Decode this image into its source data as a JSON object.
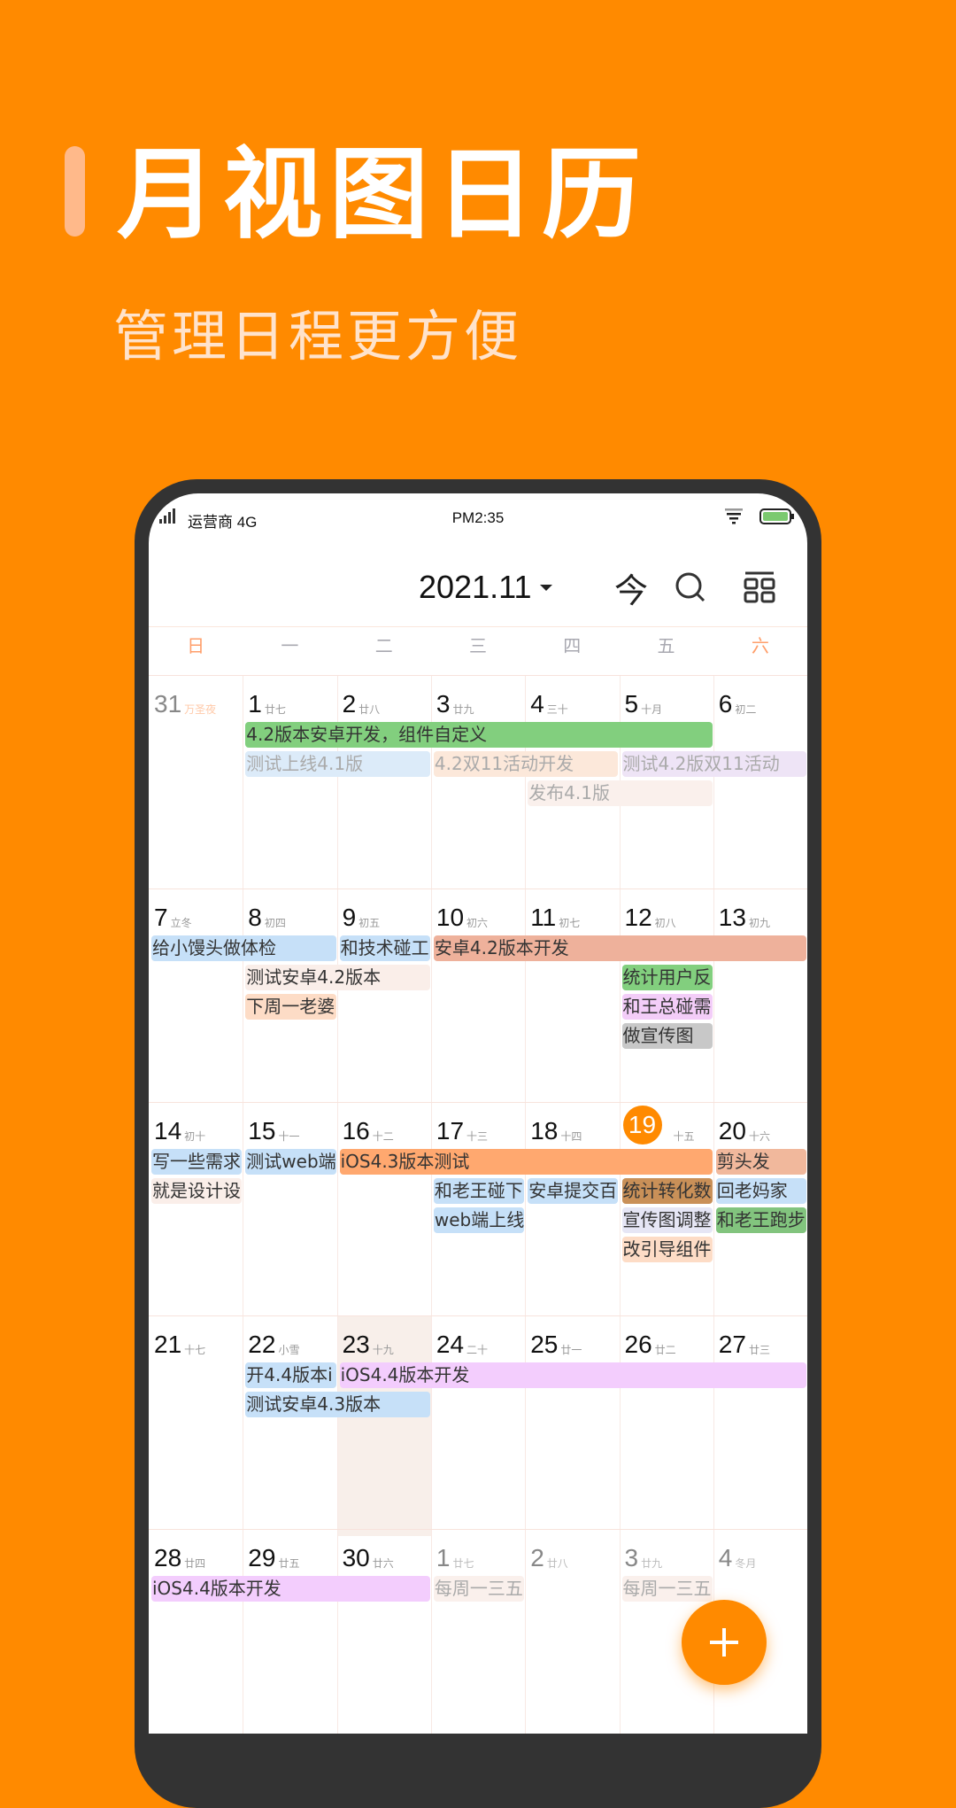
{
  "hero": {
    "title": "月视图日历",
    "subtitle": "管理日程更方便"
  },
  "status_bar": {
    "carrier": "运营商 4G",
    "time": "PM2:35"
  },
  "header": {
    "month": "2021.11",
    "today_label": "今"
  },
  "colors": {
    "background": "#FF8A00",
    "today": "#FF8A00",
    "weekend": "#FF9E6A"
  },
  "weekdays": [
    "日",
    "一",
    "二",
    "三",
    "四",
    "五",
    "六"
  ],
  "weeks": [
    {
      "days": [
        {
          "num": "31",
          "lunar": "万圣夜",
          "other": true,
          "festival": true
        },
        {
          "num": "1",
          "lunar": "廿七"
        },
        {
          "num": "2",
          "lunar": "廿八"
        },
        {
          "num": "3",
          "lunar": "廿九"
        },
        {
          "num": "4",
          "lunar": "三十"
        },
        {
          "num": "5",
          "lunar": "十月"
        },
        {
          "num": "6",
          "lunar": "初二"
        }
      ],
      "events": [
        {
          "text": "4.2版本安卓开发，组件自定义",
          "col": 1,
          "span": 5,
          "slot": 0,
          "color": "#82CF7E"
        },
        {
          "text": "测试上线4.1版",
          "col": 1,
          "span": 2,
          "slot": 1,
          "color": "#DCEBF9",
          "faded": true
        },
        {
          "text": "4.2双11活动开发",
          "col": 3,
          "span": 2,
          "slot": 1,
          "color": "#FCE8DA",
          "faded": true
        },
        {
          "text": "测试4.2版双11活动",
          "col": 5,
          "span": 2,
          "slot": 1,
          "color": "#EEE4F6",
          "faded": true
        },
        {
          "text": "发布4.1版",
          "col": 4,
          "span": 2,
          "slot": 2,
          "color": "#FAF0EC",
          "faded": true
        }
      ]
    },
    {
      "days": [
        {
          "num": "7",
          "lunar": "立冬"
        },
        {
          "num": "8",
          "lunar": "初四"
        },
        {
          "num": "9",
          "lunar": "初五"
        },
        {
          "num": "10",
          "lunar": "初六"
        },
        {
          "num": "11",
          "lunar": "初七"
        },
        {
          "num": "12",
          "lunar": "初八"
        },
        {
          "num": "13",
          "lunar": "初九"
        }
      ],
      "events": [
        {
          "text": "给小馒头做体检",
          "col": 0,
          "span": 2,
          "slot": 0,
          "color": "#C6E0F8"
        },
        {
          "text": "和技术碰工",
          "col": 2,
          "span": 1,
          "slot": 0,
          "color": "#C6E0F8"
        },
        {
          "text": "安卓4.2版本开发",
          "col": 3,
          "span": 4,
          "slot": 0,
          "color": "#EEB19B"
        },
        {
          "text": "测试安卓4.2版本",
          "col": 1,
          "span": 2,
          "slot": 1,
          "color": "#FAEEE9"
        },
        {
          "text": "下周一老婆",
          "col": 1,
          "span": 1,
          "slot": 2,
          "color": "#FDDCC6"
        },
        {
          "text": "统计用户反",
          "col": 5,
          "span": 1,
          "slot": 1,
          "color": "#82CF7E"
        },
        {
          "text": "和王总碰需",
          "col": 5,
          "span": 1,
          "slot": 2,
          "color": "#F3CDF8"
        },
        {
          "text": "做宣传图",
          "col": 5,
          "span": 1,
          "slot": 3,
          "color": "#C8C8C8"
        }
      ]
    },
    {
      "days": [
        {
          "num": "14",
          "lunar": "初十"
        },
        {
          "num": "15",
          "lunar": "十一"
        },
        {
          "num": "16",
          "lunar": "十二"
        },
        {
          "num": "17",
          "lunar": "十三"
        },
        {
          "num": "18",
          "lunar": "十四"
        },
        {
          "num": "19",
          "lunar": "十五",
          "today": true
        },
        {
          "num": "20",
          "lunar": "十六"
        }
      ],
      "events": [
        {
          "text": "写一些需求",
          "col": 0,
          "span": 1,
          "slot": 0,
          "color": "#C6E0F8"
        },
        {
          "text": "测试web端",
          "col": 1,
          "span": 1,
          "slot": 0,
          "color": "#C6E0F8"
        },
        {
          "text": "iOS4.3版本测试",
          "col": 2,
          "span": 4,
          "slot": 0,
          "color": "#FFA86F"
        },
        {
          "text": "剪头发",
          "col": 6,
          "span": 1,
          "slot": 0,
          "color": "#F1B89C"
        },
        {
          "text": "就是设计设",
          "col": 0,
          "span": 1,
          "slot": 1,
          "color": "#FAEEE9"
        },
        {
          "text": "和老王碰下",
          "col": 3,
          "span": 1,
          "slot": 1,
          "color": "#C6E0F8"
        },
        {
          "text": "安卓提交百",
          "col": 4,
          "span": 1,
          "slot": 1,
          "color": "#C6E0F8"
        },
        {
          "text": "统计转化数",
          "col": 5,
          "span": 1,
          "slot": 1,
          "color": "#C99058"
        },
        {
          "text": "回老妈家",
          "col": 6,
          "span": 1,
          "slot": 1,
          "color": "#C6E0F8"
        },
        {
          "text": "web端上线",
          "col": 3,
          "span": 1,
          "slot": 2,
          "color": "#C6E0F8"
        },
        {
          "text": "宣传图调整",
          "col": 5,
          "span": 1,
          "slot": 2,
          "color": "#E6E6F5"
        },
        {
          "text": "和老王跑步",
          "col": 6,
          "span": 1,
          "slot": 2,
          "color": "#82C47E"
        },
        {
          "text": "改引导组件",
          "col": 5,
          "span": 1,
          "slot": 3,
          "color": "#FDDCC6"
        }
      ]
    },
    {
      "days": [
        {
          "num": "21",
          "lunar": "十七"
        },
        {
          "num": "22",
          "lunar": "小雪"
        },
        {
          "num": "23",
          "lunar": "十九",
          "selected": true
        },
        {
          "num": "24",
          "lunar": "二十"
        },
        {
          "num": "25",
          "lunar": "廿一"
        },
        {
          "num": "26",
          "lunar": "廿二"
        },
        {
          "num": "27",
          "lunar": "廿三"
        }
      ],
      "events": [
        {
          "text": "开4.4版本i",
          "col": 1,
          "span": 1,
          "slot": 0,
          "color": "#C6E0F8"
        },
        {
          "text": "iOS4.4版本开发",
          "col": 2,
          "span": 5,
          "slot": 0,
          "color": "#F3CDFD"
        },
        {
          "text": "测试安卓4.3版本",
          "col": 1,
          "span": 2,
          "slot": 1,
          "color": "#C6E0F8"
        }
      ]
    },
    {
      "days": [
        {
          "num": "28",
          "lunar": "廿四"
        },
        {
          "num": "29",
          "lunar": "廿五"
        },
        {
          "num": "30",
          "lunar": "廿六"
        },
        {
          "num": "1",
          "lunar": "廿七",
          "other": true
        },
        {
          "num": "2",
          "lunar": "廿八",
          "other": true
        },
        {
          "num": "3",
          "lunar": "廿九",
          "other": true
        },
        {
          "num": "4",
          "lunar": "冬月",
          "other": true
        }
      ],
      "events": [
        {
          "text": "iOS4.4版本开发",
          "col": 0,
          "span": 3,
          "slot": 0,
          "color": "#F3CDFD"
        },
        {
          "text": "每周一三五",
          "col": 3,
          "span": 1,
          "slot": 0,
          "color": "#FAF0EC",
          "faded": true
        },
        {
          "text": "每周一三五",
          "col": 5,
          "span": 1,
          "slot": 0,
          "color": "#FAF0EC",
          "faded": true
        }
      ]
    }
  ]
}
